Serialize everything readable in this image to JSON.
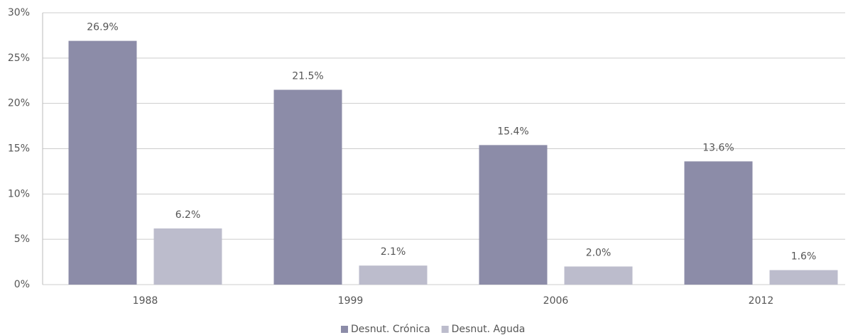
{
  "chart_data": {
    "type": "bar",
    "categories": [
      "1988",
      "1999",
      "2006",
      "2012"
    ],
    "series": [
      {
        "name": "Desnut. Crónica",
        "color": "#8c8ca8",
        "values": [
          26.9,
          21.5,
          15.4,
          13.6
        ],
        "value_labels": [
          "26.9%",
          "21.5%",
          "15.4%",
          "13.6%"
        ]
      },
      {
        "name": "Desnut. Aguda",
        "color": "#bcbccc",
        "values": [
          6.2,
          2.1,
          2.0,
          1.6
        ],
        "value_labels": [
          "6.2%",
          "2.1%",
          "2.0%",
          "1.6%"
        ]
      }
    ],
    "ylim": [
      0,
      30
    ],
    "yticks": [
      {
        "value": 0,
        "label": "0%"
      },
      {
        "value": 5,
        "label": "5%"
      },
      {
        "value": 10,
        "label": "10%"
      },
      {
        "value": 15,
        "label": "15%"
      },
      {
        "value": 20,
        "label": "20%"
      },
      {
        "value": 25,
        "label": "25%"
      },
      {
        "value": 30,
        "label": "30%"
      }
    ],
    "grid": true,
    "legend": "bottom"
  }
}
